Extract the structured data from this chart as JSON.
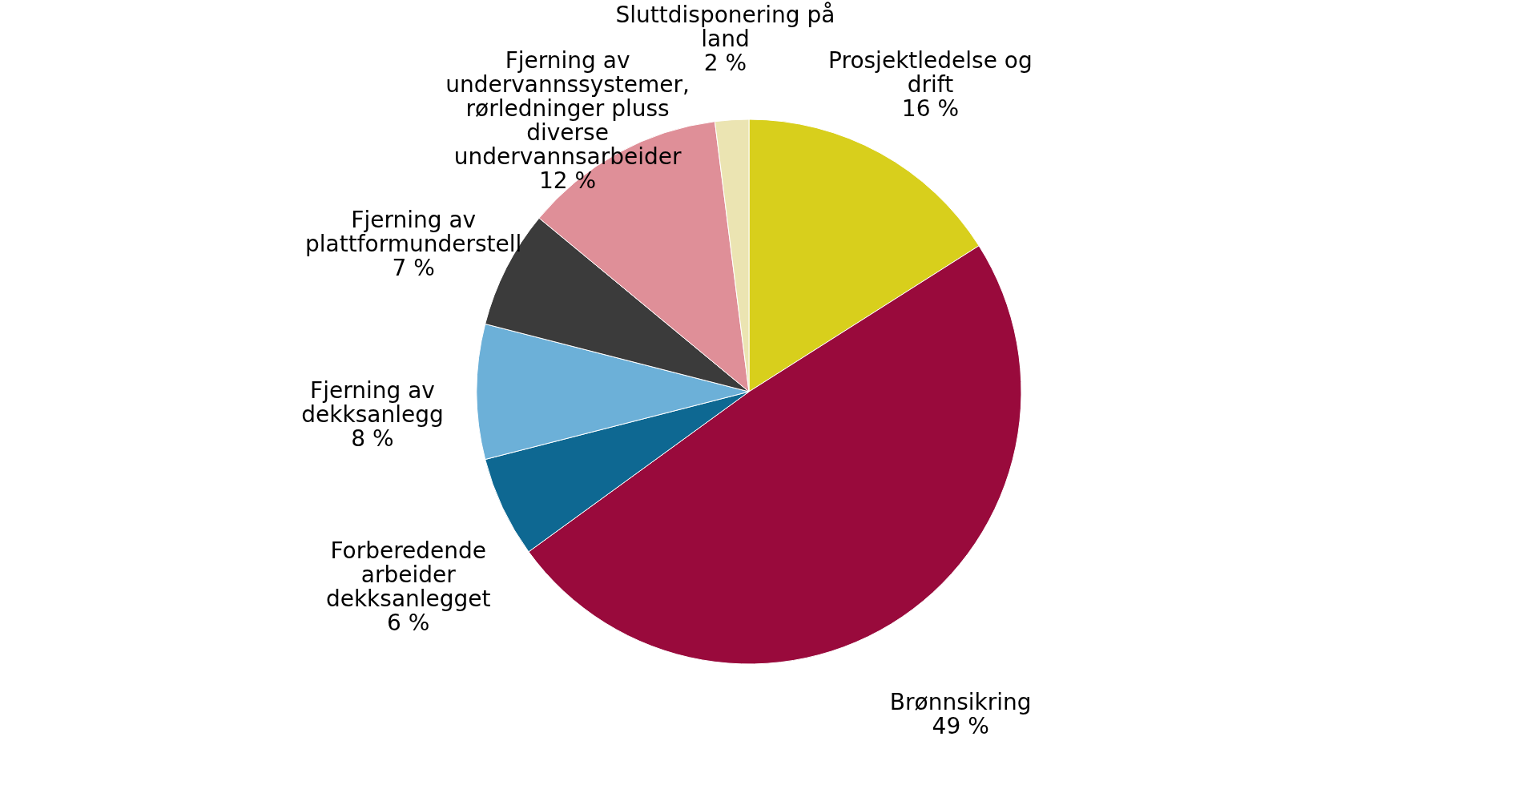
{
  "chart_data": {
    "type": "pie",
    "categories": [
      "Prosjektledelse og drift",
      "Brønnsikring",
      "Forberedende arbeider dekksanlegget",
      "Fjerning av dekksanlegg",
      "Fjerning av plattformunderstell",
      "Fjerning av undervannssystemer, rørledninger pluss diverse undervannsarbeider",
      "Sluttdisponering på land"
    ],
    "values": [
      16,
      49,
      6,
      8,
      7,
      12,
      2
    ],
    "value_labels": [
      "16 %",
      "49 %",
      "6 %",
      "8 %",
      "7 %",
      "12 %",
      "2 %"
    ],
    "colors": [
      "#d8cf1c",
      "#990a3c",
      "#0e6892",
      "#6cb0d8",
      "#3b3b3b",
      "#df8f98",
      "#ebe4b2"
    ],
    "legend": false
  }
}
